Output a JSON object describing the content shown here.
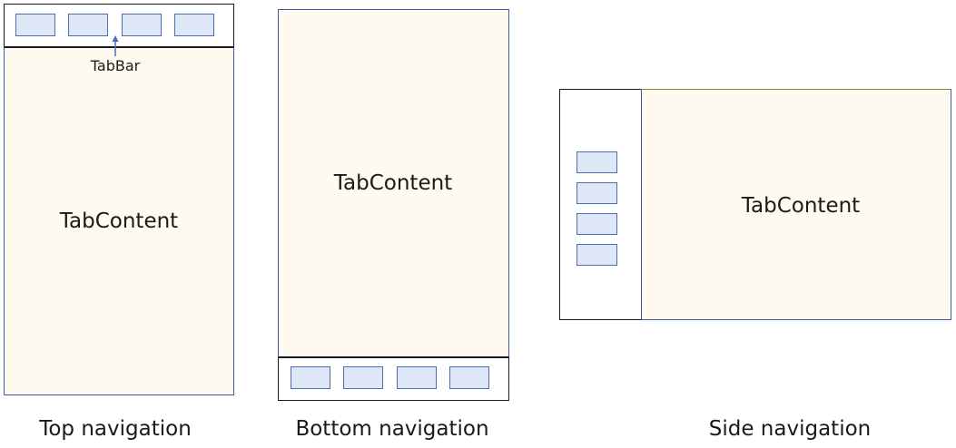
{
  "top": {
    "content_label": "TabContent",
    "tabbar_label": "TabBar",
    "caption": "Top navigation"
  },
  "bottom": {
    "content_label": "TabContent",
    "caption": "Bottom navigation"
  },
  "side": {
    "content_label": "TabContent",
    "caption": "Side navigation"
  },
  "colors": {
    "content_fill": "#fffaf0",
    "tab_fill": "#dde7f6",
    "tab_border": "#4d6cb3",
    "frame_border": "#3f5aa6"
  }
}
